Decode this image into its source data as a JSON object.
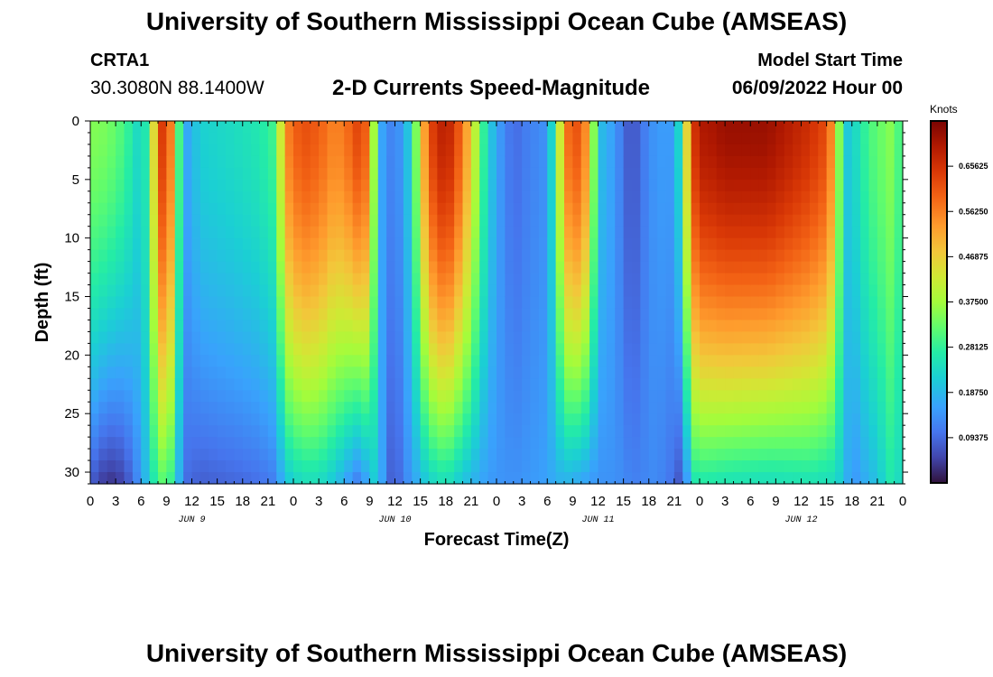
{
  "header": {
    "title": "University of Southern Mississippi Ocean Cube (AMSEAS)",
    "station_id": "CRTA1",
    "station_coords": "30.3080N  88.1400W",
    "main_title": "2-D Currents Speed-Magnitude",
    "model_start_label": "Model Start Time",
    "model_start_value": "06/09/2022 Hour 00"
  },
  "footer": {
    "title": "University of Southern Mississippi Ocean Cube (AMSEAS)"
  },
  "chart_data": {
    "type": "heatmap",
    "title": "2-D Currents Speed-Magnitude",
    "xlabel": "Forecast Time(Z)",
    "ylabel": "Depth (ft)",
    "x_range_hours": [
      0,
      96
    ],
    "y_range_ft": [
      0,
      31
    ],
    "y_ticks": [
      "0",
      "5",
      "10",
      "15",
      "20",
      "25",
      "30"
    ],
    "x_ticks": [
      "0",
      "3",
      "6",
      "9",
      "12",
      "15",
      "18",
      "21",
      "0",
      "3",
      "6",
      "9",
      "12",
      "15",
      "18",
      "21",
      "0",
      "3",
      "6",
      "9",
      "12",
      "15",
      "18",
      "21",
      "0",
      "3",
      "6",
      "9",
      "12",
      "15",
      "18",
      "21",
      "0"
    ],
    "day_labels": [
      {
        "label": "JUN 9",
        "hour": 12
      },
      {
        "label": "JUN 10",
        "hour": 36
      },
      {
        "label": "JUN 11",
        "hour": 60
      },
      {
        "label": "JUN 12",
        "hour": 84
      }
    ],
    "colorbar": {
      "units": "Knots",
      "min": 0,
      "max": 0.75,
      "labels": [
        "0.65625",
        "0.56250",
        "0.46875",
        "0.37500",
        "0.28125",
        "0.18750",
        "0.09375"
      ],
      "values": [
        0.65625,
        0.5625,
        0.46875,
        0.375,
        0.28125,
        0.1875,
        0.09375
      ]
    },
    "speed_profile_knots": {
      "hours": [
        0,
        2,
        4,
        6,
        7,
        8,
        9,
        10,
        11,
        13,
        17,
        20,
        22,
        23,
        25,
        27,
        29,
        31,
        32,
        33,
        34,
        35,
        36,
        37,
        38,
        40,
        42,
        44,
        47,
        49,
        50,
        51,
        52,
        53,
        54,
        55,
        56,
        57,
        58,
        59,
        60,
        62,
        63,
        64,
        65,
        66,
        67,
        69,
        70,
        71,
        72,
        73,
        75,
        80,
        85,
        87,
        88,
        89,
        90,
        91,
        92,
        93,
        94,
        95,
        96
      ],
      "surface": [
        0.35,
        0.34,
        0.3,
        0.22,
        0.3,
        0.6,
        0.68,
        0.45,
        0.15,
        0.22,
        0.24,
        0.26,
        0.3,
        0.55,
        0.62,
        0.6,
        0.55,
        0.6,
        0.65,
        0.55,
        0.2,
        0.12,
        0.13,
        0.15,
        0.25,
        0.62,
        0.7,
        0.58,
        0.22,
        0.12,
        0.1,
        0.1,
        0.13,
        0.12,
        0.15,
        0.3,
        0.55,
        0.62,
        0.6,
        0.5,
        0.2,
        0.15,
        0.1,
        0.06,
        0.1,
        0.13,
        0.15,
        0.15,
        0.3,
        0.62,
        0.7,
        0.7,
        0.72,
        0.72,
        0.66,
        0.62,
        0.5,
        0.2,
        0.22,
        0.26,
        0.3,
        0.32,
        0.34,
        0.36,
        0.25
      ],
      "bottom": [
        0.08,
        0.03,
        0.05,
        0.15,
        0.22,
        0.3,
        0.32,
        0.25,
        0.1,
        0.08,
        0.09,
        0.1,
        0.12,
        0.2,
        0.24,
        0.24,
        0.2,
        0.13,
        0.1,
        0.2,
        0.22,
        0.1,
        0.07,
        0.12,
        0.15,
        0.22,
        0.25,
        0.2,
        0.15,
        0.14,
        0.14,
        0.14,
        0.15,
        0.15,
        0.16,
        0.17,
        0.18,
        0.17,
        0.16,
        0.15,
        0.14,
        0.14,
        0.13,
        0.12,
        0.12,
        0.13,
        0.13,
        0.1,
        0.05,
        0.25,
        0.26,
        0.26,
        0.25,
        0.24,
        0.25,
        0.24,
        0.24,
        0.2,
        0.14,
        0.16,
        0.18,
        0.2,
        0.24,
        0.28,
        0.2
      ]
    }
  }
}
